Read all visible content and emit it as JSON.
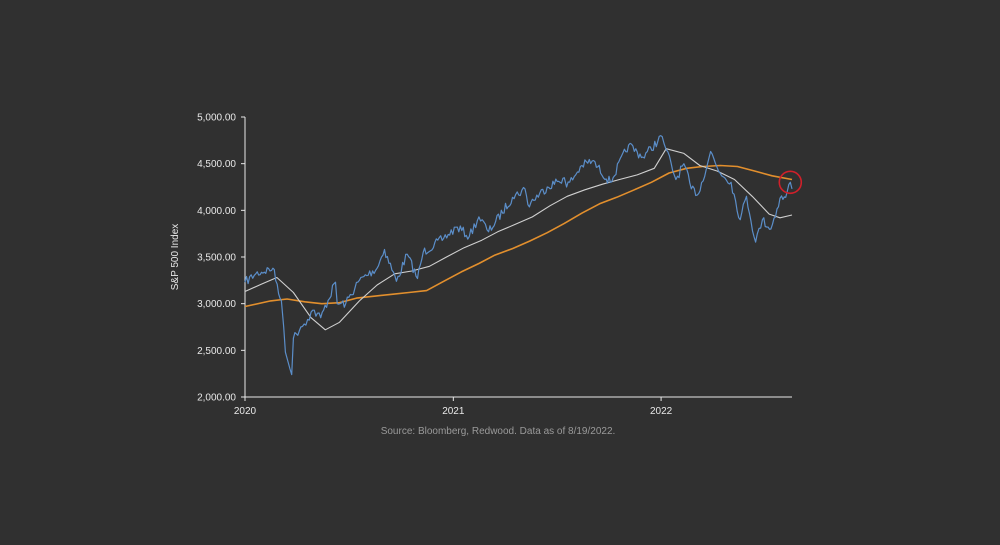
{
  "chart_data": {
    "type": "line",
    "ylabel": "S&P 500 Index",
    "xlabel": "",
    "ylim": [
      2000,
      5000
    ],
    "xlim": [
      "2020-01-01",
      "2022-08-19"
    ],
    "y_ticks": [
      {
        "value": 2000,
        "label": "2,000.00"
      },
      {
        "value": 2500,
        "label": "2,500.00"
      },
      {
        "value": 3000,
        "label": "3,000.00"
      },
      {
        "value": 3500,
        "label": "3,500.00"
      },
      {
        "value": 4000,
        "label": "4,000.00"
      },
      {
        "value": 4500,
        "label": "4,500.00"
      },
      {
        "value": 5000,
        "label": "5,000.00"
      }
    ],
    "x_ticks": [
      {
        "value": "2020-01-01",
        "label": "2020"
      },
      {
        "value": "2021-01-01",
        "label": "2021"
      },
      {
        "value": "2022-01-01",
        "label": "2022"
      }
    ],
    "grid": false,
    "legend": "none",
    "source": "Source: Bloomberg, Redwood. Data as of 8/19/2022.",
    "colors": {
      "background": "#303030",
      "axis": "#e8e8e8",
      "price": "#5b8ec9",
      "ma_short": "#d0d0d0",
      "ma_long": "#e28f2d",
      "highlight": "#d0202a"
    },
    "highlight": {
      "x": "2022-08-16",
      "y": 4300
    },
    "series": [
      {
        "role": "price",
        "x": [
          "2020-01-01",
          "2020-01-20",
          "2020-02-19",
          "2020-03-05",
          "2020-03-09",
          "2020-03-12",
          "2020-03-16",
          "2020-03-20",
          "2020-03-23",
          "2020-03-26",
          "2020-04-08",
          "2020-04-20",
          "2020-04-29",
          "2020-05-13",
          "2020-06-08",
          "2020-06-11",
          "2020-06-26",
          "2020-07-20",
          "2020-08-20",
          "2020-09-02",
          "2020-09-23",
          "2020-10-12",
          "2020-10-30",
          "2020-11-09",
          "2020-12-15",
          "2021-01-08",
          "2021-01-29",
          "2021-02-15",
          "2021-03-04",
          "2021-04-15",
          "2021-05-07",
          "2021-05-12",
          "2021-06-15",
          "2021-07-15",
          "2021-07-19",
          "2021-08-15",
          "2021-09-02",
          "2021-10-04",
          "2021-11-05",
          "2021-11-30",
          "2022-01-03",
          "2022-01-10",
          "2022-01-27",
          "2022-02-10",
          "2022-02-23",
          "2022-03-08",
          "2022-03-29",
          "2022-04-12",
          "2022-05-04",
          "2022-05-20",
          "2022-05-31",
          "2022-06-16",
          "2022-06-28",
          "2022-07-13",
          "2022-07-29",
          "2022-08-08",
          "2022-08-16",
          "2022-08-19"
        ],
        "values": [
          3230,
          3320,
          3380,
          3030,
          2750,
          2480,
          2390,
          2300,
          2240,
          2630,
          2750,
          2830,
          2930,
          2850,
          3230,
          3000,
          3000,
          3250,
          3380,
          3580,
          3240,
          3530,
          3270,
          3550,
          3700,
          3820,
          3720,
          3930,
          3770,
          4140,
          4230,
          4060,
          4250,
          4350,
          4250,
          4480,
          4530,
          4300,
          4700,
          4570,
          4790,
          4650,
          4330,
          4500,
          4230,
          4180,
          4630,
          4420,
          4300,
          3900,
          4150,
          3660,
          3900,
          3800,
          4130,
          4140,
          4300,
          4230
        ]
      },
      {
        "role": "ma_short",
        "x": [
          "2020-01-01",
          "2020-01-30",
          "2020-02-26",
          "2020-03-26",
          "2020-04-26",
          "2020-05-21",
          "2020-06-15",
          "2020-07-20",
          "2020-08-20",
          "2020-09-20",
          "2020-10-20",
          "2020-11-20",
          "2020-12-20",
          "2021-01-20",
          "2021-02-20",
          "2021-03-20",
          "2021-04-20",
          "2021-05-20",
          "2021-06-20",
          "2021-07-20",
          "2021-08-20",
          "2021-09-20",
          "2021-10-20",
          "2021-11-20",
          "2021-12-20",
          "2022-01-10",
          "2022-02-10",
          "2022-03-10",
          "2022-04-10",
          "2022-05-10",
          "2022-06-10",
          "2022-07-10",
          "2022-07-29",
          "2022-08-19"
        ],
        "values": [
          3130,
          3210,
          3280,
          3120,
          2850,
          2720,
          2800,
          3030,
          3200,
          3320,
          3350,
          3400,
          3500,
          3600,
          3680,
          3770,
          3850,
          3930,
          4050,
          4150,
          4220,
          4280,
          4330,
          4380,
          4450,
          4660,
          4610,
          4480,
          4420,
          4330,
          4150,
          3960,
          3920,
          3950
        ]
      },
      {
        "role": "ma_long",
        "x": [
          "2020-01-01",
          "2020-02-15",
          "2020-03-15",
          "2020-04-15",
          "2020-05-15",
          "2020-06-15",
          "2020-07-15",
          "2020-08-15",
          "2020-09-15",
          "2020-10-15",
          "2020-11-15",
          "2020-12-15",
          "2021-01-15",
          "2021-02-15",
          "2021-03-15",
          "2021-04-15",
          "2021-05-15",
          "2021-06-15",
          "2021-07-15",
          "2021-08-15",
          "2021-09-15",
          "2021-10-15",
          "2021-11-15",
          "2021-12-15",
          "2022-01-15",
          "2022-02-15",
          "2022-03-15",
          "2022-04-15",
          "2022-05-15",
          "2022-06-15",
          "2022-07-15",
          "2022-08-19"
        ],
        "values": [
          2970,
          3030,
          3050,
          3020,
          3000,
          3010,
          3060,
          3080,
          3100,
          3120,
          3140,
          3240,
          3340,
          3430,
          3520,
          3590,
          3670,
          3760,
          3860,
          3970,
          4070,
          4140,
          4220,
          4300,
          4400,
          4450,
          4470,
          4480,
          4470,
          4420,
          4370,
          4330
        ]
      }
    ]
  }
}
